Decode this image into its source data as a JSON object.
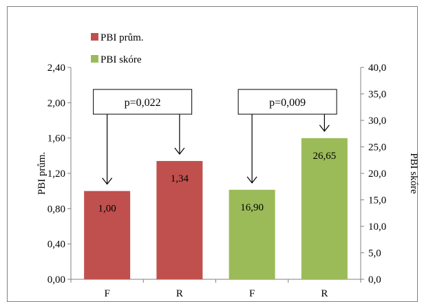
{
  "chart_data": {
    "type": "bar",
    "categories": [
      "F",
      "R",
      "F",
      "R"
    ],
    "series": [
      {
        "name": "PBI prům.",
        "axis": "left",
        "color": "#c0504d",
        "values": [
          1.0,
          1.34,
          null,
          null
        ],
        "labels": [
          "1,00",
          "1,34",
          "",
          ""
        ]
      },
      {
        "name": "PBI skóre",
        "axis": "right",
        "color": "#9bbb59",
        "values": [
          null,
          null,
          16.9,
          26.65
        ],
        "labels": [
          "",
          "",
          "16,90",
          "26,65"
        ]
      }
    ],
    "ylabel": "PBI prům.",
    "y2label": "PBI skóre",
    "ylim": [
      0,
      2.4
    ],
    "y2lim": [
      0,
      40
    ],
    "yticks": [
      "0,00",
      "0,40",
      "0,80",
      "1,20",
      "1,60",
      "2,00",
      "2,40"
    ],
    "y2ticks": [
      "0,0",
      "5,0",
      "10,0",
      "15,0",
      "20,0",
      "25,0",
      "30,0",
      "35,0",
      "40,0"
    ],
    "legend_position": "top-left",
    "grid": false,
    "annotations": [
      {
        "text": "p=0,022",
        "targets": [
          0,
          1
        ]
      },
      {
        "text": "p=0,009",
        "targets": [
          2,
          3
        ]
      }
    ]
  }
}
